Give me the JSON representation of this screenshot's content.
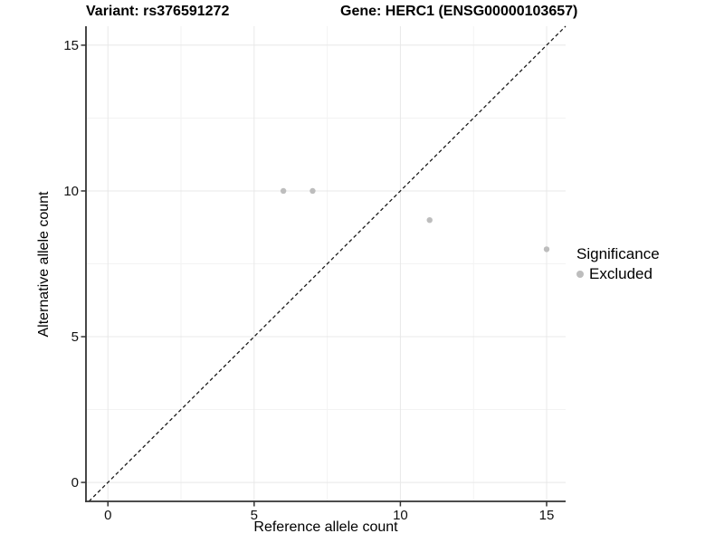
{
  "header": {
    "variant_title": "Variant: rs376591272",
    "gene_title": "Gene: HERC1 (ENSG00000103657)"
  },
  "chart_data": {
    "type": "scatter",
    "xlabel": "Reference allele count",
    "ylabel": "Alternative allele count",
    "x_ticks": [
      0,
      5,
      10,
      15
    ],
    "y_ticks": [
      0,
      5,
      10,
      15
    ],
    "x_minor_ticks": [
      2.5,
      7.5,
      12.5
    ],
    "y_minor_ticks": [
      2.5,
      7.5,
      12.5
    ],
    "xlim": [
      -0.75,
      15.65
    ],
    "ylim": [
      -0.65,
      15.65
    ],
    "series": [
      {
        "name": "Excluded",
        "color": "#bdbdbd",
        "points": [
          [
            6,
            10
          ],
          [
            7,
            10
          ],
          [
            11,
            9
          ],
          [
            15,
            8
          ]
        ]
      }
    ],
    "reference_line": {
      "type": "identity",
      "style": "dashed",
      "color": "#1a1a1a"
    },
    "legend": {
      "title": "Significance",
      "position": "right",
      "entries": [
        {
          "label": "Excluded",
          "color": "#bdbdbd"
        }
      ]
    },
    "grid": {
      "major_color": "#e8e8e8",
      "minor_color": "#f3f3f3"
    },
    "axis_color": "#333333"
  }
}
